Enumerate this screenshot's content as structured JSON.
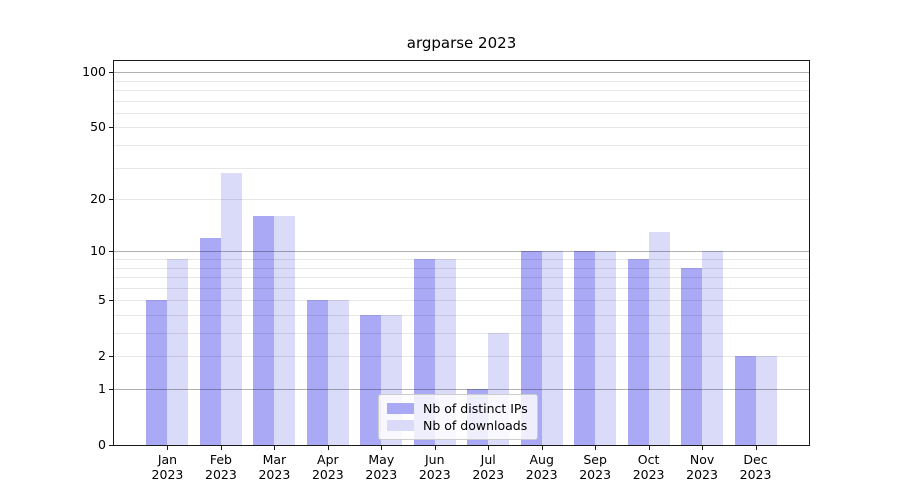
{
  "title": "argparse 2023",
  "chart_data": {
    "type": "bar",
    "title": "argparse 2023",
    "categories": [
      "Jan",
      "Feb",
      "Mar",
      "Apr",
      "May",
      "Jun",
      "Jul",
      "Aug",
      "Sep",
      "Oct",
      "Nov",
      "Dec"
    ],
    "category_year": "2023",
    "series": [
      {
        "name": "Nb of distinct IPs",
        "color": "#a9a9f5",
        "values": [
          5,
          12,
          16,
          5,
          4,
          9,
          1,
          10,
          10,
          9,
          8,
          2
        ]
      },
      {
        "name": "Nb of downloads",
        "color": "#dadaf9",
        "values": [
          9,
          28,
          16,
          5,
          4,
          9,
          3,
          10,
          10,
          13,
          10,
          2
        ]
      }
    ],
    "xlabel": "",
    "ylabel": "",
    "yscale": "log1p",
    "ylim": [
      0,
      115
    ],
    "ytick_labels": [
      0,
      1,
      2,
      5,
      10,
      20,
      50,
      100
    ],
    "major_gridlines": [
      1,
      10,
      100
    ],
    "minor_gridlines": [
      2,
      3,
      4,
      5,
      6,
      7,
      8,
      9,
      20,
      30,
      40,
      50,
      60,
      70,
      80,
      90
    ],
    "grid": true,
    "legend_position": "lower center"
  },
  "colors": {
    "background": "#ffffff",
    "spine": "#1a1a1a",
    "grid_minor": "#e8e8e8",
    "grid_major": "#b3b3b3",
    "bar_distinct_ips": "#a9a9f5",
    "bar_downloads": "#dadaf9"
  }
}
